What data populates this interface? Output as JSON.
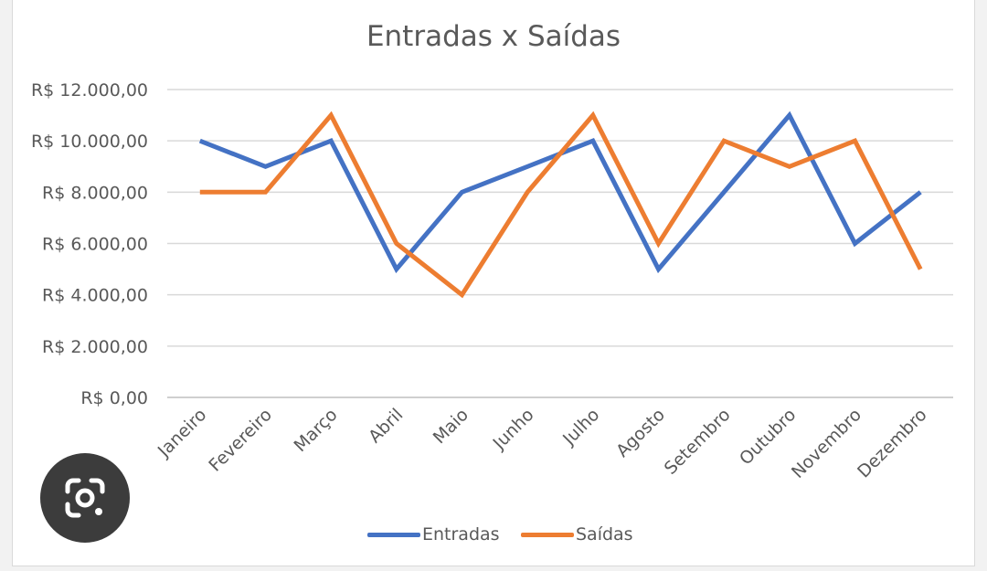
{
  "chart_data": {
    "type": "line",
    "title": "Entradas x Saídas",
    "categories": [
      "Janeiro",
      "Fevereiro",
      "Março",
      "Abril",
      "Maio",
      "Junho",
      "Julho",
      "Agosto",
      "Setembro",
      "Outubro",
      "Novembro",
      "Dezembro"
    ],
    "series": [
      {
        "name": "Entradas",
        "color": "#4472C4",
        "values": [
          10000,
          9000,
          10000,
          5000,
          8000,
          9000,
          10000,
          5000,
          8000,
          11000,
          6000,
          8000
        ]
      },
      {
        "name": "Saídas",
        "color": "#ED7D31",
        "values": [
          8000,
          8000,
          11000,
          6000,
          4000,
          8000,
          11000,
          6000,
          10000,
          9000,
          10000,
          5000
        ]
      }
    ],
    "y_ticks": [
      "R$ 0,00",
      "R$ 2.000,00",
      "R$ 4.000,00",
      "R$ 6.000,00",
      "R$ 8.000,00",
      "R$ 10.000,00",
      "R$ 12.000,00"
    ],
    "ylim": [
      0,
      12000
    ],
    "grid": true,
    "legend_position": "bottom"
  },
  "overlay": {
    "lens_icon": "camera-lens-icon"
  }
}
